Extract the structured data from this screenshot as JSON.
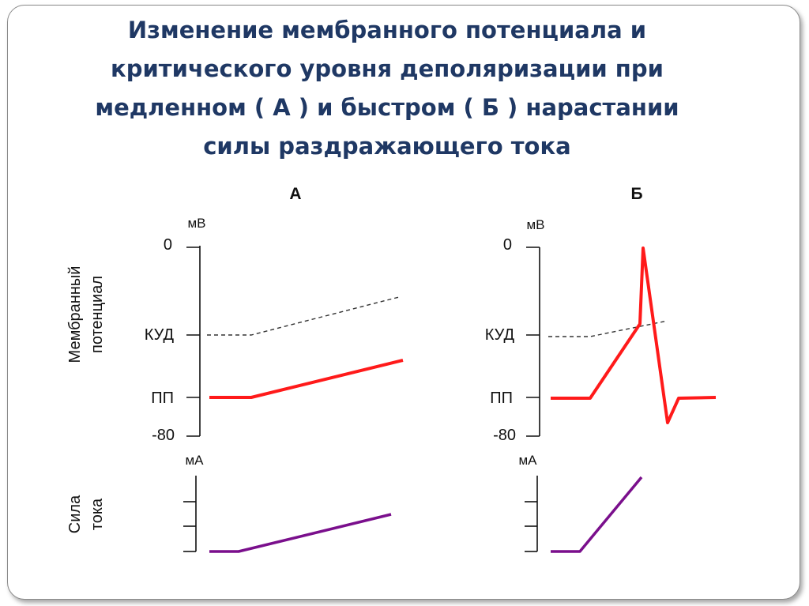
{
  "title": {
    "lines": [
      "Изменение мембранного потенциала и",
      "критического уровня деполяризации при",
      "медленном ( А ) и быстром ( Б ) нарастании",
      "силы раздражающего тока"
    ]
  },
  "panels": {
    "a": {
      "label": "А"
    },
    "b": {
      "label": "Б"
    }
  },
  "axes": {
    "membrane_ylabel_line1": "Мембранный",
    "membrane_ylabel_line2": "потенциал",
    "current_ylabel_line1": "Сила",
    "current_ylabel_line2": "тока",
    "membrane_unit": "мВ",
    "current_unit": "мА",
    "tick_zero": "0",
    "tick_kud": "КУД",
    "tick_pp": "ПП",
    "tick_min": "-80"
  },
  "colors": {
    "title": "#1f3864",
    "membrane_potential": "#ff1a1a",
    "current": "#7a0f8c",
    "threshold": "#333333",
    "axis": "#111111"
  }
}
